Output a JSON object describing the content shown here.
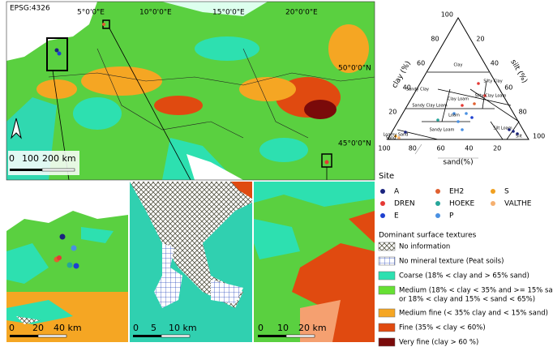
{
  "main_map": {
    "crs": "EPSG:4326",
    "lon_labels": [
      "5°0'0\"E",
      "10°0'0\"E",
      "15°0'0\"E",
      "20°0'0\"E"
    ],
    "lat_labels": [
      "50°0'0\"N",
      "45°0'0\"N"
    ],
    "scale_labels": [
      "0",
      "100",
      "200 km"
    ]
  },
  "insets": [
    {
      "scale_labels": [
        "0",
        "20",
        "40 km"
      ]
    },
    {
      "scale_labels": [
        "0",
        "5",
        "10 km"
      ]
    },
    {
      "scale_labels": [
        "0",
        "10",
        "20 km"
      ]
    }
  ],
  "ternary": {
    "clay_label": "clay (%)",
    "silt_label": "silt (%)",
    "sand_label": "sand(%)",
    "clay_ticks": [
      20,
      40,
      60,
      80,
      100
    ],
    "silt_ticks": [
      20,
      40,
      60,
      80,
      100
    ],
    "sand_ticks": [
      20,
      40,
      60,
      80,
      100
    ],
    "classes": [
      "Clay",
      "Sandy Clay",
      "Silty Clay",
      "Clay Loam",
      "Silty Clay Loam",
      "Sandy Clay Loam",
      "Loam",
      "Silt Loam",
      "Sandy Loam",
      "Silt",
      "Loamy Sand",
      "Sand"
    ]
  },
  "site_legend": {
    "title": "Site",
    "items": [
      {
        "name": "A",
        "color": "#1a237e"
      },
      {
        "name": "DREN",
        "color": "#e53935"
      },
      {
        "name": "E",
        "color": "#1e40d0"
      },
      {
        "name": "EH2",
        "color": "#e06030"
      },
      {
        "name": "HOEKE",
        "color": "#26a69a"
      },
      {
        "name": "P",
        "color": "#4a90e2"
      },
      {
        "name": "S",
        "color": "#f0a020"
      },
      {
        "name": "VALTHE",
        "color": "#f5b070"
      }
    ]
  },
  "texture_legend": {
    "title": "Dominant surface textures",
    "items": [
      {
        "lines": [
          "No information"
        ],
        "fill": "url(#hatch)"
      },
      {
        "lines": [
          "No mineral texture (Peat soils)"
        ],
        "fill": "url(#grid)"
      },
      {
        "lines": [
          "Coarse (18% < clay and > 65% sand)"
        ],
        "fill": "#2de0b0"
      },
      {
        "lines": [
          "Medium (18% < clay < 35% and >= 15% sand,",
          "or 18% < clay and 15% < sand < 65%)"
        ],
        "fill": "#66e033"
      },
      {
        "lines": [
          "Medium fine (< 35% clay and < 15% sand)"
        ],
        "fill": "#f5a623"
      },
      {
        "lines": [
          "Fine (35% < clay < 60%)"
        ],
        "fill": "#e04a10"
      },
      {
        "lines": [
          "Very fine (clay > 60 %)"
        ],
        "fill": "#7a0a0a"
      }
    ]
  }
}
